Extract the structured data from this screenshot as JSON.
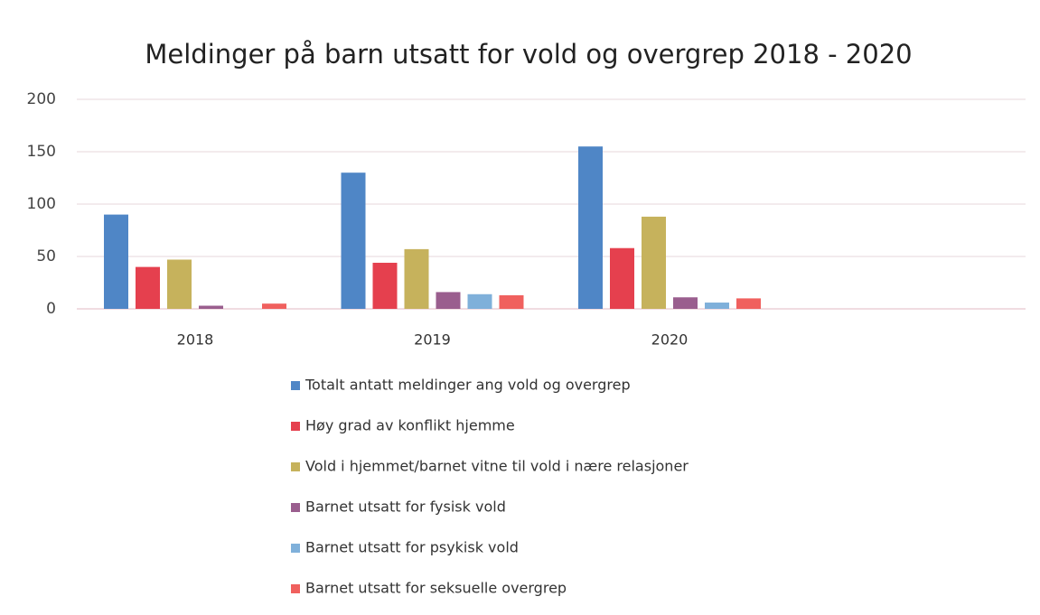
{
  "chart_data": {
    "type": "bar",
    "title": "Meldinger på barn utsatt for vold og overgrep 2018 - 2020",
    "categories": [
      "2018",
      "2019",
      "2020",
      null
    ],
    "series": [
      {
        "name": "Totalt antatt meldinger ang vold og overgrep",
        "color": "#4f86c6",
        "values": [
          90,
          130,
          155,
          null
        ]
      },
      {
        "name": "Høy grad av konflikt hjemme",
        "color": "#e5404e",
        "values": [
          40,
          44,
          58,
          null
        ]
      },
      {
        "name": "Vold i hjemmet/barnet vitne til vold i nære relasjoner",
        "color": "#c6b25c",
        "values": [
          47,
          57,
          88,
          null
        ]
      },
      {
        "name": "Barnet utsatt for fysisk vold",
        "color": "#9a5e8e",
        "values": [
          3,
          16,
          11,
          null
        ]
      },
      {
        "name": "Barnet utsatt for psykisk vold",
        "color": "#7fb0da",
        "values": [
          0,
          14,
          6,
          null
        ]
      },
      {
        "name": "Barnet utsatt for seksuelle overgrep",
        "color": "#f0605e",
        "values": [
          5,
          13,
          10,
          null
        ]
      }
    ],
    "ylim": [
      0,
      200
    ],
    "yticks": [
      0,
      50,
      100,
      150,
      200
    ],
    "grid": true
  }
}
